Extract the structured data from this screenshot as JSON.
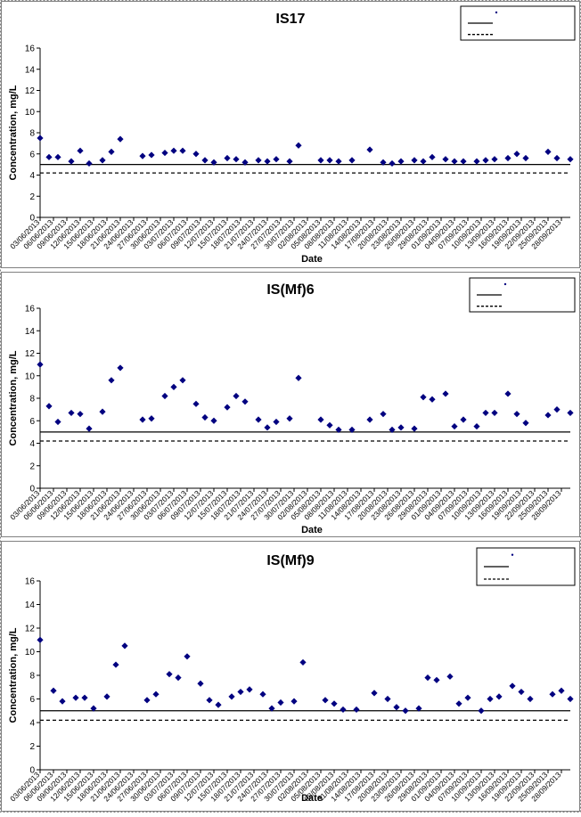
{
  "chart_data": [
    {
      "type": "scatter",
      "title": "IS17",
      "xlabel": "Date",
      "ylabel": "Concentration, mg/L",
      "ylim": [
        0,
        16
      ],
      "yticks": [
        0,
        2,
        4,
        6,
        8,
        10,
        12,
        14,
        16
      ],
      "xticks": [
        "03/06/2013",
        "06/06/2013",
        "09/06/2013",
        "12/06/2013",
        "15/06/2013",
        "18/06/2013",
        "21/06/2013",
        "24/06/2013",
        "27/06/2013",
        "30/06/2013",
        "03/07/2013",
        "06/07/2013",
        "09/07/2013",
        "12/07/2013",
        "15/07/2013",
        "18/07/2013",
        "21/07/2013",
        "24/07/2013",
        "27/07/2013",
        "30/07/2013",
        "02/08/2013",
        "05/08/2013",
        "08/08/2013",
        "11/08/2013",
        "14/08/2013",
        "17/08/2013",
        "20/08/2013",
        "23/08/2013",
        "26/08/2013",
        "29/08/2013",
        "01/09/2013",
        "04/09/2013",
        "07/09/2013",
        "10/09/2013",
        "13/09/2013",
        "16/09/2013",
        "19/09/2013",
        "22/09/2013",
        "25/09/2013",
        "28/09/2013"
      ],
      "legend_position": "top-right",
      "legend": [
        "",
        "",
        ""
      ],
      "series": [
        {
          "marker": "diamond",
          "color": "#000080",
          "points": [
            {
              "x": "03/06/2013",
              "y": 7.5
            },
            {
              "x": "05/06/2013",
              "y": 5.7
            },
            {
              "x": "07/06/2013",
              "y": 5.7
            },
            {
              "x": "10/06/2013",
              "y": 5.3
            },
            {
              "x": "12/06/2013",
              "y": 6.3
            },
            {
              "x": "14/06/2013",
              "y": 5.1
            },
            {
              "x": "17/06/2013",
              "y": 5.4
            },
            {
              "x": "19/06/2013",
              "y": 6.2
            },
            {
              "x": "21/06/2013",
              "y": 7.4
            },
            {
              "x": "26/06/2013",
              "y": 5.8
            },
            {
              "x": "28/06/2013",
              "y": 5.9
            },
            {
              "x": "01/07/2013",
              "y": 6.1
            },
            {
              "x": "03/07/2013",
              "y": 6.3
            },
            {
              "x": "05/07/2013",
              "y": 6.3
            },
            {
              "x": "08/07/2013",
              "y": 6.0
            },
            {
              "x": "10/07/2013",
              "y": 5.4
            },
            {
              "x": "12/07/2013",
              "y": 5.2
            },
            {
              "x": "15/07/2013",
              "y": 5.6
            },
            {
              "x": "17/07/2013",
              "y": 5.5
            },
            {
              "x": "19/07/2013",
              "y": 5.2
            },
            {
              "x": "22/07/2013",
              "y": 5.4
            },
            {
              "x": "24/07/2013",
              "y": 5.3
            },
            {
              "x": "26/07/2013",
              "y": 5.5
            },
            {
              "x": "29/07/2013",
              "y": 5.3
            },
            {
              "x": "31/07/2013",
              "y": 6.8
            },
            {
              "x": "05/08/2013",
              "y": 5.4
            },
            {
              "x": "07/08/2013",
              "y": 5.4
            },
            {
              "x": "09/08/2013",
              "y": 5.3
            },
            {
              "x": "12/08/2013",
              "y": 5.4
            },
            {
              "x": "16/08/2013",
              "y": 6.4
            },
            {
              "x": "19/08/2013",
              "y": 5.2
            },
            {
              "x": "21/08/2013",
              "y": 5.1
            },
            {
              "x": "23/08/2013",
              "y": 5.3
            },
            {
              "x": "26/08/2013",
              "y": 5.4
            },
            {
              "x": "28/08/2013",
              "y": 5.3
            },
            {
              "x": "30/08/2013",
              "y": 5.7
            },
            {
              "x": "02/09/2013",
              "y": 5.5
            },
            {
              "x": "04/09/2013",
              "y": 5.3
            },
            {
              "x": "06/09/2013",
              "y": 5.3
            },
            {
              "x": "09/09/2013",
              "y": 5.3
            },
            {
              "x": "11/09/2013",
              "y": 5.4
            },
            {
              "x": "13/09/2013",
              "y": 5.5
            },
            {
              "x": "16/09/2013",
              "y": 5.6
            },
            {
              "x": "18/09/2013",
              "y": 6.0
            },
            {
              "x": "20/09/2013",
              "y": 5.6
            },
            {
              "x": "25/09/2013",
              "y": 6.2
            },
            {
              "x": "27/09/2013",
              "y": 5.6
            },
            {
              "x": "30/09/2013",
              "y": 5.5
            }
          ]
        }
      ],
      "reference_lines": [
        {
          "value": 5.0,
          "style": "solid"
        },
        {
          "value": 4.2,
          "style": "dashed"
        }
      ]
    },
    {
      "type": "scatter",
      "title": "IS(Mf)6",
      "xlabel": "Date",
      "ylabel": "Concentration, mg/L",
      "ylim": [
        0,
        16
      ],
      "yticks": [
        0,
        2,
        4,
        6,
        8,
        10,
        12,
        14,
        16
      ],
      "xticks": [
        "03/06/2013",
        "06/06/2013",
        "09/06/2013",
        "12/06/2013",
        "15/06/2013",
        "18/06/2013",
        "21/06/2013",
        "24/06/2013",
        "27/06/2013",
        "30/06/2013",
        "03/07/2013",
        "06/07/2013",
        "09/07/2013",
        "12/07/2013",
        "15/07/2013",
        "18/07/2013",
        "21/07/2013",
        "24/07/2013",
        "27/07/2013",
        "30/07/2013",
        "02/08/2013",
        "05/08/2013",
        "08/08/2013",
        "11/08/2013",
        "14/08/2013",
        "17/08/2013",
        "20/08/2013",
        "23/08/2013",
        "26/08/2013",
        "29/08/2013",
        "01/09/2013",
        "04/09/2013",
        "07/09/2013",
        "10/09/2013",
        "13/09/2013",
        "16/09/2013",
        "19/09/2013",
        "22/09/2013",
        "25/09/2013",
        "28/09/2013"
      ],
      "legend_position": "top-right",
      "legend": [
        "",
        "",
        ""
      ],
      "series": [
        {
          "marker": "diamond",
          "color": "#000080",
          "points": [
            {
              "x": "03/06/2013",
              "y": 11.0
            },
            {
              "x": "05/06/2013",
              "y": 7.3
            },
            {
              "x": "07/06/2013",
              "y": 5.9
            },
            {
              "x": "10/06/2013",
              "y": 6.7
            },
            {
              "x": "12/06/2013",
              "y": 6.6
            },
            {
              "x": "14/06/2013",
              "y": 5.3
            },
            {
              "x": "17/06/2013",
              "y": 6.8
            },
            {
              "x": "19/06/2013",
              "y": 9.6
            },
            {
              "x": "21/06/2013",
              "y": 10.7
            },
            {
              "x": "26/06/2013",
              "y": 6.1
            },
            {
              "x": "28/06/2013",
              "y": 6.2
            },
            {
              "x": "01/07/2013",
              "y": 8.2
            },
            {
              "x": "03/07/2013",
              "y": 9.0
            },
            {
              "x": "05/07/2013",
              "y": 9.6
            },
            {
              "x": "08/07/2013",
              "y": 7.5
            },
            {
              "x": "10/07/2013",
              "y": 6.3
            },
            {
              "x": "12/07/2013",
              "y": 6.0
            },
            {
              "x": "15/07/2013",
              "y": 7.2
            },
            {
              "x": "17/07/2013",
              "y": 8.2
            },
            {
              "x": "19/07/2013",
              "y": 7.7
            },
            {
              "x": "22/07/2013",
              "y": 6.1
            },
            {
              "x": "24/07/2013",
              "y": 5.4
            },
            {
              "x": "26/07/2013",
              "y": 5.9
            },
            {
              "x": "29/07/2013",
              "y": 6.2
            },
            {
              "x": "31/07/2013",
              "y": 9.8
            },
            {
              "x": "05/08/2013",
              "y": 6.1
            },
            {
              "x": "07/08/2013",
              "y": 5.6
            },
            {
              "x": "09/08/2013",
              "y": 5.2
            },
            {
              "x": "12/08/2013",
              "y": 5.2
            },
            {
              "x": "16/08/2013",
              "y": 6.1
            },
            {
              "x": "19/08/2013",
              "y": 6.6
            },
            {
              "x": "21/08/2013",
              "y": 5.2
            },
            {
              "x": "23/08/2013",
              "y": 5.4
            },
            {
              "x": "26/08/2013",
              "y": 5.3
            },
            {
              "x": "28/08/2013",
              "y": 8.1
            },
            {
              "x": "30/08/2013",
              "y": 7.9
            },
            {
              "x": "02/09/2013",
              "y": 8.4
            },
            {
              "x": "04/09/2013",
              "y": 5.5
            },
            {
              "x": "06/09/2013",
              "y": 6.1
            },
            {
              "x": "09/09/2013",
              "y": 5.5
            },
            {
              "x": "11/09/2013",
              "y": 6.7
            },
            {
              "x": "13/09/2013",
              "y": 6.7
            },
            {
              "x": "16/09/2013",
              "y": 8.4
            },
            {
              "x": "18/09/2013",
              "y": 6.6
            },
            {
              "x": "20/09/2013",
              "y": 5.8
            },
            {
              "x": "25/09/2013",
              "y": 6.5
            },
            {
              "x": "27/09/2013",
              "y": 7.0
            },
            {
              "x": "30/09/2013",
              "y": 6.7
            }
          ]
        }
      ],
      "reference_lines": [
        {
          "value": 5.0,
          "style": "solid"
        },
        {
          "value": 4.2,
          "style": "dashed"
        }
      ]
    },
    {
      "type": "scatter",
      "title": "IS(Mf)9",
      "xlabel": "Date",
      "ylabel": "Concentration, mg/L",
      "ylim": [
        0,
        16
      ],
      "yticks": [
        0,
        2,
        4,
        6,
        8,
        10,
        12,
        14,
        16
      ],
      "xticks": [
        "03/06/2013",
        "06/06/2013",
        "09/06/2013",
        "12/06/2013",
        "15/06/2013",
        "18/06/2013",
        "21/06/2013",
        "24/06/2013",
        "27/06/2013",
        "30/06/2013",
        "03/07/2013",
        "06/07/2013",
        "09/07/2013",
        "12/07/2013",
        "15/07/2013",
        "18/07/2013",
        "21/07/2013",
        "24/07/2013",
        "27/07/2013",
        "30/07/2013",
        "02/08/2013",
        "05/08/2013",
        "08/08/2013",
        "11/08/2013",
        "14/08/2013",
        "17/08/2013",
        "20/08/2013",
        "23/08/2013",
        "26/08/2013",
        "29/08/2013",
        "01/09/2013",
        "04/09/2013",
        "07/09/2013",
        "10/09/2013",
        "13/09/2013",
        "16/09/2013",
        "19/09/2013",
        "22/09/2013",
        "25/09/2013",
        "28/09/2013"
      ],
      "legend_position": "top-right",
      "legend": [
        "",
        "",
        ""
      ],
      "series": [
        {
          "marker": "diamond",
          "color": "#000080",
          "points": [
            {
              "x": "03/06/2013",
              "y": 11.0
            },
            {
              "x": "06/06/2013",
              "y": 6.7
            },
            {
              "x": "08/06/2013",
              "y": 5.8
            },
            {
              "x": "11/06/2013",
              "y": 6.1
            },
            {
              "x": "13/06/2013",
              "y": 6.1
            },
            {
              "x": "15/06/2013",
              "y": 5.2
            },
            {
              "x": "18/06/2013",
              "y": 6.2
            },
            {
              "x": "20/06/2013",
              "y": 8.9
            },
            {
              "x": "22/06/2013",
              "y": 10.5
            },
            {
              "x": "27/06/2013",
              "y": 5.9
            },
            {
              "x": "29/06/2013",
              "y": 6.4
            },
            {
              "x": "02/07/2013",
              "y": 8.1
            },
            {
              "x": "04/07/2013",
              "y": 7.8
            },
            {
              "x": "06/07/2013",
              "y": 9.6
            },
            {
              "x": "09/07/2013",
              "y": 7.3
            },
            {
              "x": "11/07/2013",
              "y": 5.9
            },
            {
              "x": "13/07/2013",
              "y": 5.5
            },
            {
              "x": "16/07/2013",
              "y": 6.2
            },
            {
              "x": "18/07/2013",
              "y": 6.6
            },
            {
              "x": "20/07/2013",
              "y": 6.8
            },
            {
              "x": "23/07/2013",
              "y": 6.4
            },
            {
              "x": "25/07/2013",
              "y": 5.2
            },
            {
              "x": "27/07/2013",
              "y": 5.7
            },
            {
              "x": "30/07/2013",
              "y": 5.8
            },
            {
              "x": "01/08/2013",
              "y": 9.1
            },
            {
              "x": "06/08/2013",
              "y": 5.9
            },
            {
              "x": "08/08/2013",
              "y": 5.6
            },
            {
              "x": "10/08/2013",
              "y": 5.1
            },
            {
              "x": "13/08/2013",
              "y": 5.1
            },
            {
              "x": "17/08/2013",
              "y": 6.5
            },
            {
              "x": "20/08/2013",
              "y": 6.0
            },
            {
              "x": "22/08/2013",
              "y": 5.3
            },
            {
              "x": "24/08/2013",
              "y": 5.0
            },
            {
              "x": "27/08/2013",
              "y": 5.2
            },
            {
              "x": "29/08/2013",
              "y": 7.8
            },
            {
              "x": "31/08/2013",
              "y": 7.6
            },
            {
              "x": "03/09/2013",
              "y": 7.9
            },
            {
              "x": "05/09/2013",
              "y": 5.6
            },
            {
              "x": "07/09/2013",
              "y": 6.1
            },
            {
              "x": "10/09/2013",
              "y": 5.0
            },
            {
              "x": "12/09/2013",
              "y": 6.0
            },
            {
              "x": "14/09/2013",
              "y": 6.2
            },
            {
              "x": "17/09/2013",
              "y": 7.1
            },
            {
              "x": "19/09/2013",
              "y": 6.6
            },
            {
              "x": "21/09/2013",
              "y": 6.0
            },
            {
              "x": "26/09/2013",
              "y": 6.4
            },
            {
              "x": "28/09/2013",
              "y": 6.7
            },
            {
              "x": "30/09/2013",
              "y": 6.0
            }
          ]
        }
      ],
      "reference_lines": [
        {
          "value": 5.0,
          "style": "solid"
        },
        {
          "value": 4.2,
          "style": "dashed"
        }
      ]
    }
  ]
}
